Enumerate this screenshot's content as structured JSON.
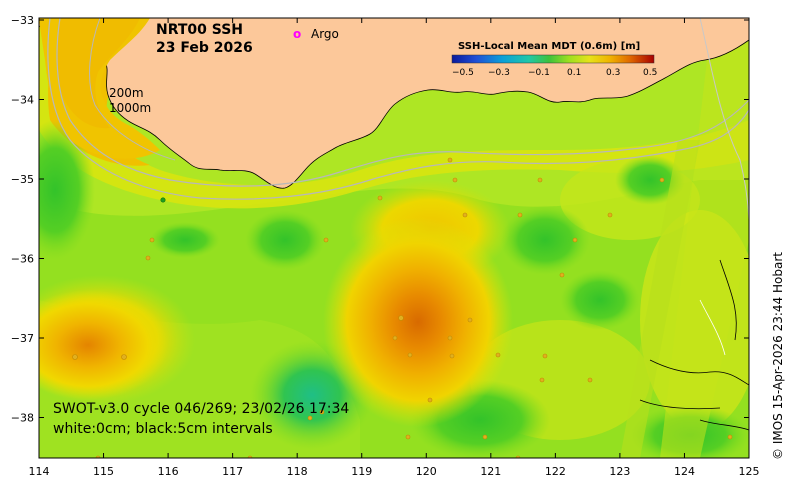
{
  "title": {
    "line1": "NRT00 SSH",
    "line2": "23 Feb 2026"
  },
  "legend": {
    "argo_marker": "o",
    "argo_label": "Argo"
  },
  "colorbar": {
    "title": "SSH-Local Mean MDT (0.6m) [m]",
    "ticks": [
      "−0.5",
      "−0.3",
      "−0.1",
      "0.1",
      "0.3",
      "0.5"
    ],
    "colors": [
      "#0a1a9c",
      "#1f4fd6",
      "#0a9bd6",
      "#20c8b0",
      "#2fb85a",
      "#6fd62a",
      "#b8e01a",
      "#e8e020",
      "#f0b800",
      "#e88000",
      "#d84800",
      "#b00000"
    ]
  },
  "isobaths": {
    "line1": "200m",
    "line2": "1000m"
  },
  "swot": {
    "line1": "SWOT-v3.0 cycle 046/269; 23/02/26 17:34",
    "line2": "white:0cm; black:5cm intervals"
  },
  "credit": "© IMOS 15-Apr-2026 23:44 Hobart",
  "axes": {
    "x_ticks": [
      "114",
      "115",
      "116",
      "117",
      "118",
      "119",
      "120",
      "121",
      "122",
      "123",
      "124",
      "125"
    ],
    "y_ticks": [
      "−33",
      "−34",
      "−35",
      "−36",
      "−37",
      "−38"
    ]
  },
  "colors": {
    "land": "#fcc89a",
    "ocean_green": "#aee624",
    "mid_green": "#7fdc1e",
    "dark_green": "#2fc22c",
    "yellow": "#f0d800",
    "orange": "#f0a400",
    "dark_orange": "#e07a00",
    "teal": "#20bf7a",
    "argo": "#ff00ff"
  }
}
